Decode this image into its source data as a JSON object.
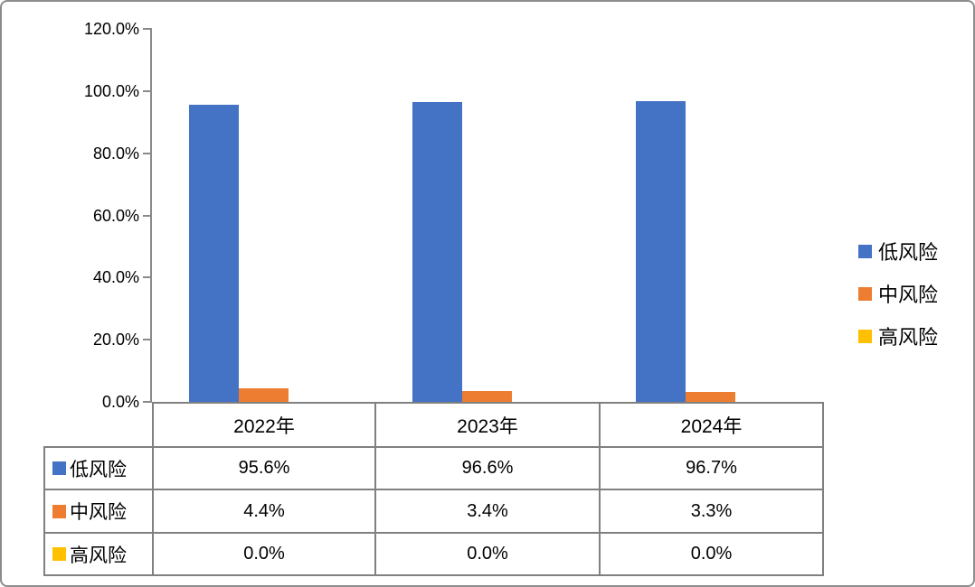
{
  "chart_data": {
    "type": "bar",
    "title": "",
    "xlabel": "",
    "ylabel": "",
    "categories": [
      "2022年",
      "2023年",
      "2024年"
    ],
    "series": [
      {
        "name": "低风险",
        "key": "low-risk",
        "color": "#4472C4",
        "values": [
          95.6,
          96.6,
          96.7
        ]
      },
      {
        "name": "中风险",
        "key": "mid-risk",
        "color": "#ED7D31",
        "values": [
          4.4,
          3.4,
          3.3
        ]
      },
      {
        "name": "高风险",
        "key": "high-risk",
        "color": "#FFC000",
        "values": [
          0.0,
          0.0,
          0.0
        ]
      }
    ],
    "ylim": [
      0,
      120
    ],
    "y_ticks": [
      "120.0%",
      "100.0%",
      "80.0%",
      "60.0%",
      "40.0%",
      "20.0%",
      "0.0%"
    ],
    "grid": false,
    "legend_position": "right",
    "data_table_shown": true
  },
  "legend": {
    "items": [
      {
        "label": "低风险",
        "key": "low-risk",
        "color": "#4472C4"
      },
      {
        "label": "中风险",
        "key": "mid-risk",
        "color": "#ED7D31"
      },
      {
        "label": "高风险",
        "key": "high-risk",
        "color": "#FFC000"
      }
    ]
  },
  "table": {
    "header": [
      "2022年",
      "2023年",
      "2024年"
    ],
    "rows": [
      {
        "label": "低风险",
        "key": "low-risk",
        "color": "#4472C4",
        "cells": [
          "95.6%",
          "96.6%",
          "96.7%"
        ]
      },
      {
        "label": "中风险",
        "key": "mid-risk",
        "color": "#ED7D31",
        "cells": [
          "4.4%",
          "3.4%",
          "3.3%"
        ]
      },
      {
        "label": "高风险",
        "key": "high-risk",
        "color": "#FFC000",
        "cells": [
          "0.0%",
          "0.0%",
          "0.0%"
        ]
      }
    ]
  },
  "style": {
    "axis_color": "#8A8A8A",
    "table_border_color": "#808080",
    "frame_border_color": "#8C8C8C",
    "text_color": "#000000",
    "background_color": "#FFFFFF"
  }
}
